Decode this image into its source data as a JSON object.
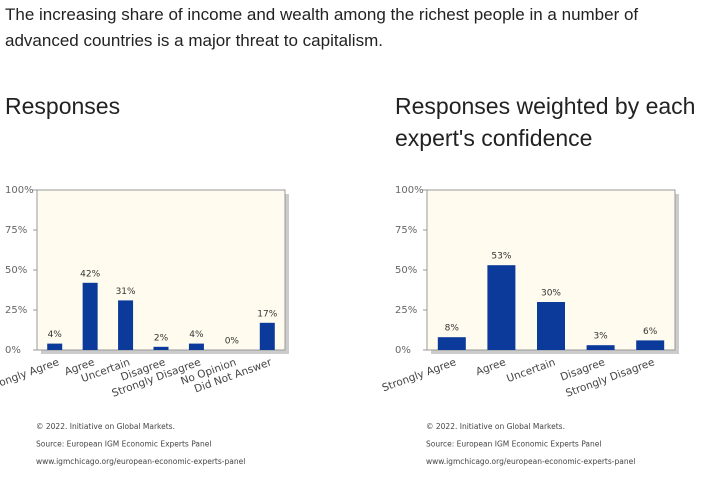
{
  "question": "The increasing share of income and wealth among the richest people in a number of advanced countries is a major threat to capitalism.",
  "chart_data": [
    {
      "type": "bar",
      "title": "Responses",
      "categories": [
        "Strongly Agree",
        "Agree",
        "Uncertain",
        "Disagree",
        "Strongly Disagree",
        "No Opinion",
        "Did Not Answer"
      ],
      "values": [
        4,
        42,
        31,
        2,
        4,
        0,
        17
      ],
      "value_labels": [
        "4%",
        "42%",
        "31%",
        "2%",
        "4%",
        "0%",
        "17%"
      ],
      "color": "#0b3a9a",
      "ylim": [
        0,
        100
      ],
      "yticks": [
        {
          "value": 0,
          "label": "0%"
        },
        {
          "value": 25,
          "label": "25%"
        },
        {
          "value": 50,
          "label": "50%"
        },
        {
          "value": 75,
          "label": "75%"
        },
        {
          "value": 100,
          "label": "100%"
        }
      ],
      "grid": false,
      "notes": [
        "© 2022. Initiative on Global Markets.",
        "Source: European IGM Economic Experts Panel",
        "www.igmchicago.org/european-economic-experts-panel"
      ]
    },
    {
      "type": "bar",
      "title": "Responses weighted by each expert's confidence",
      "categories": [
        "Strongly Agree",
        "Agree",
        "Uncertain",
        "Disagree",
        "Strongly Disagree"
      ],
      "values": [
        8,
        53,
        30,
        3,
        6
      ],
      "value_labels": [
        "8%",
        "53%",
        "30%",
        "3%",
        "6%"
      ],
      "color": "#0b3a9a",
      "ylim": [
        0,
        100
      ],
      "yticks": [
        {
          "value": 0,
          "label": "0%"
        },
        {
          "value": 25,
          "label": "25%"
        },
        {
          "value": 50,
          "label": "50%"
        },
        {
          "value": 75,
          "label": "75%"
        },
        {
          "value": 100,
          "label": "100%"
        }
      ],
      "grid": false,
      "notes": [
        "© 2022. Initiative on Global Markets.",
        "Source: European IGM Economic Experts Panel",
        "www.igmchicago.org/european-economic-experts-panel"
      ]
    }
  ]
}
